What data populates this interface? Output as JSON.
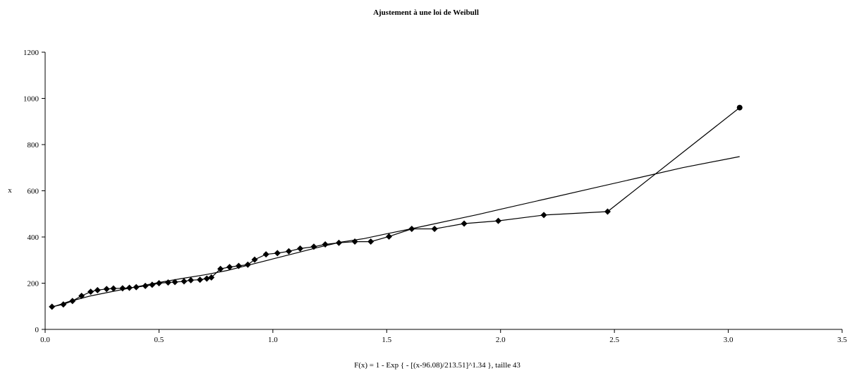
{
  "chart_data": {
    "type": "line",
    "title": "Ajustement à une loi de Weibull",
    "xlabel": "F(x) = 1 - Exp { - [(x-96.08)/213.51]^1.34 },  taille 43",
    "ylabel": "x",
    "xlim": [
      0,
      3.5
    ],
    "ylim": [
      0,
      1200
    ],
    "x_ticks": [
      "0.0",
      "0.5",
      "1.0",
      "1.5",
      "2.0",
      "2.5",
      "3.0",
      "3.5"
    ],
    "y_ticks": [
      "0",
      "200",
      "400",
      "600",
      "800",
      "1000",
      "1200"
    ],
    "grid": false,
    "legend": "none",
    "series": [
      {
        "marker": "diamond",
        "color": "#000000",
        "x": [
          0.03,
          0.08,
          0.12,
          0.16,
          0.2,
          0.23,
          0.27,
          0.3,
          0.34,
          0.37,
          0.4,
          0.44,
          0.47,
          0.5,
          0.54,
          0.57,
          0.61,
          0.64,
          0.68,
          0.71,
          0.73,
          0.77,
          0.81,
          0.85,
          0.89,
          0.92,
          0.97,
          1.02,
          1.07,
          1.12,
          1.18,
          1.23,
          1.29,
          1.36,
          1.43,
          1.51,
          1.61,
          1.71,
          1.84,
          1.99,
          2.19,
          2.47,
          3.05
        ],
        "y": [
          98,
          108,
          123,
          145,
          163,
          170,
          175,
          177,
          178,
          180,
          183,
          188,
          193,
          200,
          203,
          205,
          208,
          213,
          215,
          220,
          225,
          262,
          270,
          275,
          280,
          302,
          325,
          330,
          338,
          350,
          358,
          368,
          375,
          380,
          380,
          402,
          435,
          435,
          458,
          470,
          495,
          510,
          960
        ]
      },
      {
        "marker": "none",
        "color": "#000000",
        "x": [
          0.03,
          0.1,
          0.2,
          0.3,
          0.4,
          0.5,
          0.6,
          0.7,
          0.8,
          0.9,
          1.0,
          1.1,
          1.2,
          1.3,
          1.4,
          1.5,
          1.6,
          1.7,
          1.8,
          1.9,
          2.0,
          2.2,
          2.4,
          2.6,
          2.8,
          3.05
        ],
        "y": [
          96,
          119,
          145,
          165,
          184,
          203,
          220,
          236,
          255,
          280,
          305,
          330,
          355,
          378,
          393,
          414,
          434,
          455,
          476,
          497,
          520,
          565,
          610,
          655,
          700,
          748
        ]
      }
    ]
  }
}
